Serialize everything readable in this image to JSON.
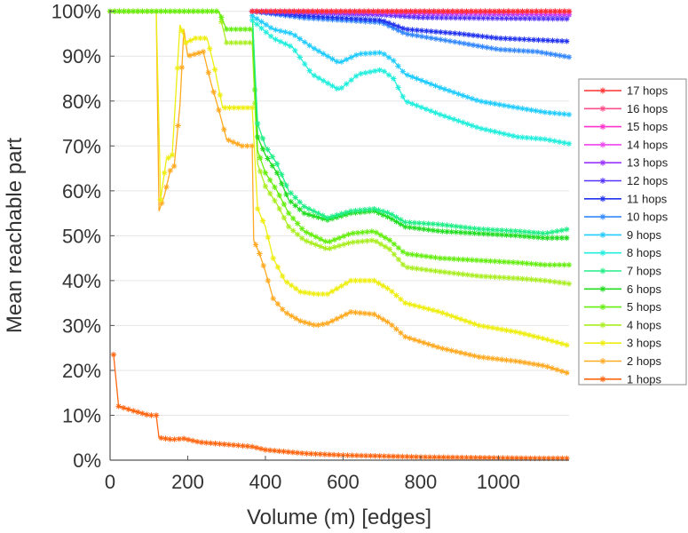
{
  "chart_data": {
    "type": "line",
    "title": "",
    "xlabel": "Volume (m) [edges]",
    "ylabel": "Mean reachable part",
    "xlim": [
      0,
      1182
    ],
    "ylim": [
      0,
      100
    ],
    "x_ticks": [
      0,
      200,
      400,
      600,
      800,
      1000
    ],
    "x_tick_labels": [
      "0",
      "200",
      "400",
      "600",
      "800",
      "1000"
    ],
    "y_ticks": [
      0,
      10,
      20,
      30,
      40,
      50,
      60,
      70,
      80,
      90,
      100
    ],
    "y_tick_labels": [
      "0%",
      "10%",
      "20%",
      "30%",
      "40%",
      "50%",
      "60%",
      "70%",
      "80%",
      "90%",
      "100%"
    ],
    "grid": true,
    "legend_position": "right",
    "marker": "asterisk",
    "series": [
      {
        "name": "17 hops",
        "color": "#ff3030",
        "points": [
          [
            366,
            100
          ],
          [
            1182,
            100
          ]
        ]
      },
      {
        "name": "16 hops",
        "color": "#ff4f8a",
        "points": [
          [
            366,
            100
          ],
          [
            1182,
            100
          ]
        ]
      },
      {
        "name": "15 hops",
        "color": "#ff33cc",
        "points": [
          [
            366,
            100
          ],
          [
            1182,
            100
          ]
        ]
      },
      {
        "name": "14 hops",
        "color": "#ee44ee",
        "points": [
          [
            366,
            100
          ],
          [
            1182,
            99.6
          ]
        ]
      },
      {
        "name": "13 hops",
        "color": "#9933ff",
        "points": [
          [
            366,
            100
          ],
          [
            700,
            99.5
          ],
          [
            1182,
            99.2
          ]
        ]
      },
      {
        "name": "12 hops",
        "color": "#5533ff",
        "points": [
          [
            366,
            100
          ],
          [
            700,
            99.2
          ],
          [
            800,
            98.6
          ],
          [
            1182,
            98.3
          ]
        ]
      },
      {
        "name": "11 hops",
        "color": "#2233ee",
        "points": [
          [
            366,
            100
          ],
          [
            500,
            99
          ],
          [
            700,
            98
          ],
          [
            760,
            96
          ],
          [
            900,
            95
          ],
          [
            1000,
            94
          ],
          [
            1182,
            93.3
          ]
        ]
      },
      {
        "name": "10 hops",
        "color": "#3388ff",
        "points": [
          [
            366,
            100
          ],
          [
            500,
            98.5
          ],
          [
            700,
            97.5
          ],
          [
            760,
            95
          ],
          [
            900,
            93
          ],
          [
            1000,
            91.5
          ],
          [
            1100,
            91
          ],
          [
            1182,
            89.8
          ]
        ]
      },
      {
        "name": "9 hops",
        "color": "#22ccff",
        "points": [
          [
            366,
            99
          ],
          [
            420,
            96
          ],
          [
            470,
            95
          ],
          [
            520,
            92
          ],
          [
            590,
            88.5
          ],
          [
            640,
            90.5
          ],
          [
            700,
            90.8
          ],
          [
            730,
            89
          ],
          [
            760,
            86
          ],
          [
            850,
            83
          ],
          [
            950,
            80
          ],
          [
            1050,
            78.5
          ],
          [
            1120,
            77.5
          ],
          [
            1182,
            77
          ]
        ]
      },
      {
        "name": "8 hops",
        "color": "#22eedd",
        "points": [
          [
            366,
            98
          ],
          [
            420,
            94
          ],
          [
            470,
            92
          ],
          [
            520,
            86
          ],
          [
            590,
            82.5
          ],
          [
            640,
            86
          ],
          [
            700,
            87
          ],
          [
            730,
            85
          ],
          [
            760,
            80
          ],
          [
            850,
            77
          ],
          [
            950,
            74
          ],
          [
            1050,
            72
          ],
          [
            1120,
            71.5
          ],
          [
            1182,
            70.5
          ]
        ]
      },
      {
        "name": "7 hops",
        "color": "#22ee88",
        "points": [
          [
            366,
            100
          ],
          [
            380,
            75
          ],
          [
            400,
            70
          ],
          [
            430,
            66
          ],
          [
            460,
            60
          ],
          [
            500,
            56.5
          ],
          [
            560,
            54
          ],
          [
            620,
            55.5
          ],
          [
            680,
            56
          ],
          [
            720,
            55
          ],
          [
            760,
            53
          ],
          [
            850,
            52.5
          ],
          [
            950,
            51.5
          ],
          [
            1050,
            51
          ],
          [
            1120,
            50.5
          ],
          [
            1182,
            51.5
          ]
        ]
      },
      {
        "name": "6 hops",
        "color": "#22dd22",
        "points": [
          [
            366,
            100
          ],
          [
            380,
            72
          ],
          [
            400,
            68
          ],
          [
            430,
            64
          ],
          [
            460,
            58
          ],
          [
            500,
            55
          ],
          [
            560,
            53.5
          ],
          [
            620,
            55
          ],
          [
            680,
            55.5
          ],
          [
            720,
            54
          ],
          [
            760,
            52
          ],
          [
            850,
            51
          ],
          [
            950,
            50.5
          ],
          [
            1050,
            50
          ],
          [
            1120,
            49.5
          ],
          [
            1182,
            49.5
          ]
        ]
      },
      {
        "name": "5 hops",
        "color": "#66ee11",
        "points": [
          [
            0,
            100
          ],
          [
            280,
            100
          ],
          [
            300,
            96
          ],
          [
            366,
            96
          ],
          [
            380,
            69
          ],
          [
            400,
            64
          ],
          [
            430,
            60
          ],
          [
            460,
            55
          ],
          [
            500,
            51
          ],
          [
            560,
            48.5
          ],
          [
            620,
            50.5
          ],
          [
            680,
            51
          ],
          [
            720,
            49
          ],
          [
            760,
            46
          ],
          [
            850,
            45
          ],
          [
            950,
            44.5
          ],
          [
            1050,
            44
          ],
          [
            1120,
            43.5
          ],
          [
            1182,
            43.5
          ]
        ]
      },
      {
        "name": "4 hops",
        "color": "#aaee22",
        "points": [
          [
            0,
            100
          ],
          [
            280,
            100
          ],
          [
            300,
            93
          ],
          [
            366,
            93
          ],
          [
            380,
            66
          ],
          [
            400,
            61
          ],
          [
            430,
            57
          ],
          [
            460,
            52
          ],
          [
            500,
            49
          ],
          [
            560,
            47
          ],
          [
            620,
            48.5
          ],
          [
            680,
            49
          ],
          [
            720,
            47
          ],
          [
            760,
            43
          ],
          [
            850,
            42
          ],
          [
            950,
            41
          ],
          [
            1050,
            40.5
          ],
          [
            1120,
            40
          ],
          [
            1182,
            39.3
          ]
        ]
      },
      {
        "name": "3 hops",
        "color": "#eeee11",
        "points": [
          [
            119,
            100
          ],
          [
            130,
            58
          ],
          [
            145,
            67
          ],
          [
            160,
            68
          ],
          [
            180,
            97
          ],
          [
            195,
            93
          ],
          [
            220,
            94
          ],
          [
            250,
            94
          ],
          [
            270,
            87
          ],
          [
            290,
            78.5
          ],
          [
            366,
            78.5
          ],
          [
            380,
            56
          ],
          [
            400,
            52
          ],
          [
            420,
            45
          ],
          [
            450,
            40
          ],
          [
            490,
            37.5
          ],
          [
            530,
            37
          ],
          [
            560,
            37
          ],
          [
            620,
            40
          ],
          [
            680,
            40
          ],
          [
            720,
            38
          ],
          [
            760,
            35
          ],
          [
            850,
            33
          ],
          [
            950,
            30
          ],
          [
            1050,
            28.5
          ],
          [
            1120,
            27
          ],
          [
            1182,
            25.5
          ]
        ]
      },
      {
        "name": "2 hops",
        "color": "#ffaa22",
        "points": [
          [
            0,
            100
          ],
          [
            119,
            100
          ],
          [
            126,
            55.5
          ],
          [
            140,
            59
          ],
          [
            155,
            64.5
          ],
          [
            165,
            65.5
          ],
          [
            180,
            79
          ],
          [
            190,
            96
          ],
          [
            200,
            90
          ],
          [
            240,
            91
          ],
          [
            260,
            84
          ],
          [
            280,
            78
          ],
          [
            300,
            71.5
          ],
          [
            340,
            70
          ],
          [
            366,
            70
          ],
          [
            370,
            49
          ],
          [
            385,
            46
          ],
          [
            400,
            42
          ],
          [
            420,
            36
          ],
          [
            450,
            33
          ],
          [
            490,
            31
          ],
          [
            530,
            30
          ],
          [
            560,
            30.5
          ],
          [
            620,
            33
          ],
          [
            680,
            32.5
          ],
          [
            720,
            30.5
          ],
          [
            760,
            27.5
          ],
          [
            850,
            25
          ],
          [
            950,
            23
          ],
          [
            1050,
            22
          ],
          [
            1120,
            21
          ],
          [
            1182,
            19.3
          ]
        ]
      },
      {
        "name": "1 hops",
        "color": "#ff6611",
        "points": [
          [
            9,
            23.5
          ],
          [
            22,
            12
          ],
          [
            60,
            11
          ],
          [
            100,
            10
          ],
          [
            119,
            10
          ],
          [
            126,
            5
          ],
          [
            160,
            4.6
          ],
          [
            190,
            4.8
          ],
          [
            230,
            4
          ],
          [
            300,
            3.5
          ],
          [
            366,
            3
          ],
          [
            400,
            2.3
          ],
          [
            500,
            1.5
          ],
          [
            600,
            1.1
          ],
          [
            700,
            0.9
          ],
          [
            800,
            0.7
          ],
          [
            900,
            0.6
          ],
          [
            1000,
            0.5
          ],
          [
            1100,
            0.4
          ],
          [
            1182,
            0.4
          ]
        ]
      }
    ]
  }
}
